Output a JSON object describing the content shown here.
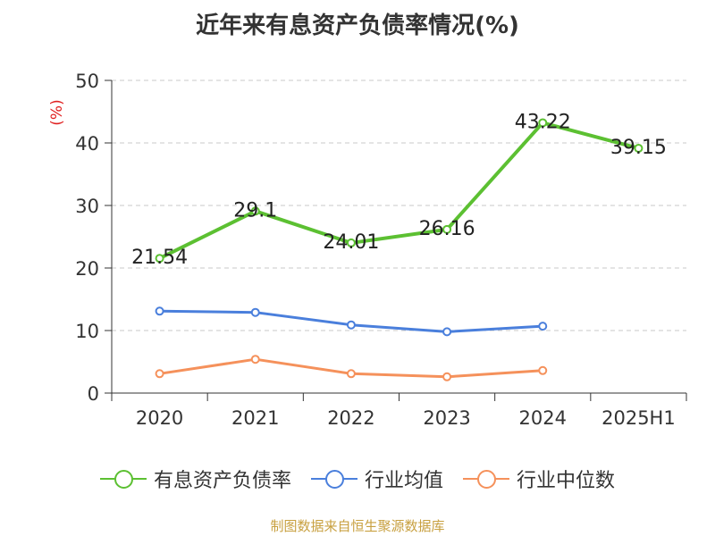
{
  "title": "近年来有息资产负债率情况(%)",
  "source": "制图数据来自恒生聚源数据库",
  "chart_data": {
    "type": "line",
    "title": "近年来有息资产负债率情况(%)",
    "ylabel": "(%)",
    "xlabel": "",
    "ylim": [
      0,
      50
    ],
    "yticks": [
      "0",
      "10",
      "20",
      "30",
      "40",
      "50"
    ],
    "categories": [
      "2020",
      "2021",
      "2022",
      "2023",
      "2024",
      "2025H1"
    ],
    "grid": true,
    "legend_position": "bottom",
    "series": [
      {
        "name": "有息资产负债率",
        "color": "#5cc032",
        "values": [
          21.54,
          29.1,
          24.01,
          26.16,
          43.22,
          39.15
        ],
        "labels": [
          "21.54",
          "29.1",
          "24.01",
          "26.16",
          "43.22",
          "39.15"
        ]
      },
      {
        "name": "行业均值",
        "color": "#4a7fdc",
        "values": [
          13.1,
          12.9,
          10.9,
          9.8,
          10.7,
          null
        ]
      },
      {
        "name": "行业中位数",
        "color": "#f5915b",
        "values": [
          3.1,
          5.4,
          3.1,
          2.6,
          3.6,
          null
        ]
      }
    ]
  }
}
